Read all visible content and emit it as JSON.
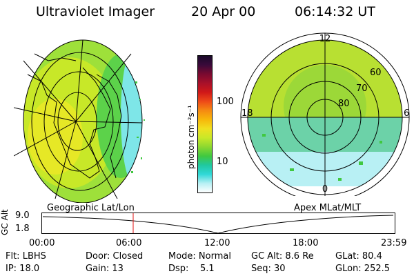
{
  "header": {
    "instrument": "Ultraviolet Imager",
    "date": "20 Apr 00",
    "time": "06:14:32 UT"
  },
  "colorbar": {
    "unit_label": "photon cm⁻²s⁻¹",
    "ticks": [
      "100",
      "10"
    ],
    "scale": "log",
    "colors": [
      "#1a0a2a",
      "#3a0a3a",
      "#7a0a30",
      "#a8102a",
      "#d01818",
      "#ee4a18",
      "#f58a12",
      "#f7b80a",
      "#f0e020",
      "#c8e828",
      "#8cd830",
      "#40c840",
      "#20c8a0",
      "#30d8d8",
      "#b8f0f4",
      "#ffffff"
    ]
  },
  "left_map": {
    "caption": "Geographic Lat/Lon"
  },
  "right_map": {
    "caption": "Apex MLat/MLT",
    "mlt_labels": {
      "top": "12",
      "left": "18",
      "right": "6",
      "bottom": "0"
    },
    "lat_labels": [
      "60",
      "70",
      "80"
    ]
  },
  "altitude_plot": {
    "ylabel": "GC Alt",
    "yticks": [
      "9.0",
      "1.8"
    ],
    "xticks": [
      "00:00",
      "06:00",
      "12:00",
      "18:00",
      "23:59"
    ],
    "marker_time": "06:14"
  },
  "info": {
    "flt": "Flt: LBHS",
    "door": "Door: Closed",
    "mode": "Mode: Normal",
    "gc_alt": "GC Alt: 8.6 Re",
    "glat": "GLat: 80.4",
    "ip": "IP: 18.0",
    "gain": "Gain: 13",
    "dsp": "Dsp:    5.1",
    "seq": "Seq: 30",
    "glon": "GLon: 252.5"
  }
}
